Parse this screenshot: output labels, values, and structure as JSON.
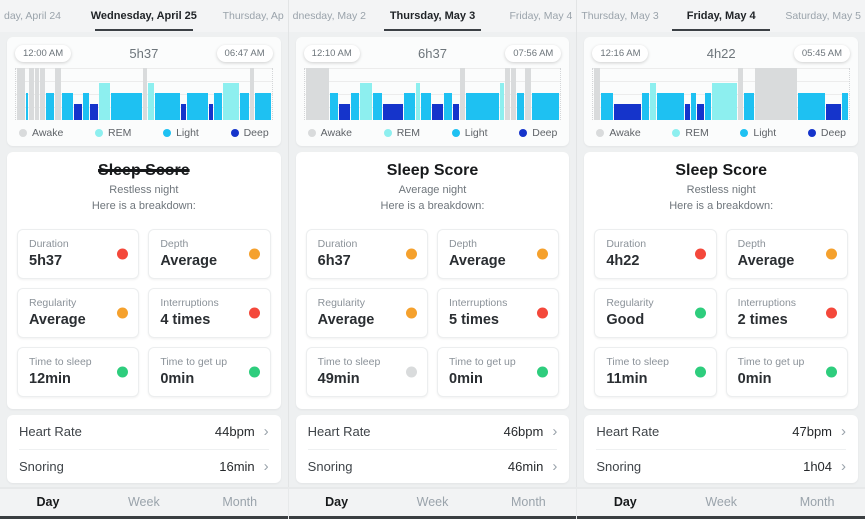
{
  "colors": {
    "stages": {
      "awake": "#d9dbdc",
      "rem": "#8defef",
      "light": "#1ec1f2",
      "deep": "#1534cb"
    },
    "status": {
      "red": "#f4483b",
      "orange": "#f5a12d",
      "green": "#2ecd7d",
      "gray": "#d9dbdc"
    }
  },
  "legend": [
    {
      "label": "Awake",
      "stage": "awake"
    },
    {
      "label": "REM",
      "stage": "rem"
    },
    {
      "label": "Light",
      "stage": "light"
    },
    {
      "label": "Deep",
      "stage": "deep"
    }
  ],
  "bottom_nav": {
    "items": [
      "Day",
      "Week",
      "Month"
    ],
    "active": "Day"
  },
  "panels": [
    {
      "tabs": {
        "prev": "day, April 24",
        "current": "Wednesday, April 25",
        "next": "Thursday, Ap"
      },
      "sleep_window": {
        "start": "12:00 AM",
        "duration": "5h37",
        "end": "06:47 AM"
      },
      "hypnogram": [
        [
          "awake",
          2
        ],
        [
          "light",
          0.6
        ],
        [
          "awake",
          1.2
        ],
        [
          "awake",
          1.2
        ],
        [
          "awake",
          1.2
        ],
        [
          "light",
          2
        ],
        [
          "awake",
          1.5
        ],
        [
          "light",
          3
        ],
        [
          "deep",
          2
        ],
        [
          "light",
          1.5
        ],
        [
          "deep",
          2
        ],
        [
          "rem",
          3
        ],
        [
          "light",
          8
        ],
        [
          "awake",
          1
        ],
        [
          "rem",
          1.5
        ],
        [
          "light",
          6.5
        ],
        [
          "deep",
          1.2
        ],
        [
          "light",
          5.5
        ],
        [
          "deep",
          1
        ],
        [
          "light",
          2
        ],
        [
          "rem",
          4
        ],
        [
          "light",
          2.5
        ],
        [
          "awake",
          1
        ],
        [
          "light",
          4
        ]
      ],
      "score": {
        "title": "Sleep Score",
        "night": "Restless night",
        "breakdown": "Here is a breakdown:"
      },
      "metrics": [
        {
          "label": "Duration",
          "value": "5h37",
          "status": "red"
        },
        {
          "label": "Depth",
          "value": "Average",
          "status": "orange"
        },
        {
          "label": "Regularity",
          "value": "Average",
          "status": "orange"
        },
        {
          "label": "Interruptions",
          "value": "4 times",
          "status": "red"
        },
        {
          "label": "Time to sleep",
          "value": "12min",
          "status": "green"
        },
        {
          "label": "Time to get up",
          "value": "0min",
          "status": "green"
        }
      ],
      "rows": [
        {
          "label": "Heart Rate",
          "value": "44bpm"
        },
        {
          "label": "Snoring",
          "value": "16min"
        }
      ]
    },
    {
      "tabs": {
        "prev": "dnesday, May 2",
        "current": "Thursday, May 3",
        "next": "Friday, May 4"
      },
      "sleep_window": {
        "start": "12:10 AM",
        "duration": "6h37",
        "end": "07:56 AM"
      },
      "hypnogram": [
        [
          "awake",
          6
        ],
        [
          "light",
          2
        ],
        [
          "deep",
          3
        ],
        [
          "light",
          2
        ],
        [
          "rem",
          3
        ],
        [
          "light",
          2.5
        ],
        [
          "deep",
          5
        ],
        [
          "light",
          3
        ],
        [
          "rem",
          1
        ],
        [
          "light",
          2.5
        ],
        [
          "deep",
          3
        ],
        [
          "light",
          2
        ],
        [
          "deep",
          1.5
        ],
        [
          "awake",
          1.3
        ],
        [
          "light",
          8.5
        ],
        [
          "rem",
          1.2
        ],
        [
          "awake",
          1.2
        ],
        [
          "awake",
          1.2
        ],
        [
          "light",
          2
        ],
        [
          "awake",
          1.5
        ],
        [
          "light",
          7
        ]
      ],
      "score": {
        "title": "Sleep Score",
        "night": "Average night",
        "breakdown": "Here is a breakdown:"
      },
      "metrics": [
        {
          "label": "Duration",
          "value": "6h37",
          "status": "orange"
        },
        {
          "label": "Depth",
          "value": "Average",
          "status": "orange"
        },
        {
          "label": "Regularity",
          "value": "Average",
          "status": "orange"
        },
        {
          "label": "Interruptions",
          "value": "5 times",
          "status": "red"
        },
        {
          "label": "Time to sleep",
          "value": "49min",
          "status": "gray"
        },
        {
          "label": "Time to get up",
          "value": "0min",
          "status": "green"
        }
      ],
      "rows": [
        {
          "label": "Heart Rate",
          "value": "46bpm"
        },
        {
          "label": "Snoring",
          "value": "46min"
        }
      ]
    },
    {
      "tabs": {
        "prev": "Thursday, May 3",
        "current": "Friday, May 4",
        "next": "Saturday, May 5"
      },
      "sleep_window": {
        "start": "12:16 AM",
        "duration": "4h22",
        "end": "05:45 AM"
      },
      "hypnogram": [
        [
          "awake",
          1.5
        ],
        [
          "light",
          3
        ],
        [
          "deep",
          7
        ],
        [
          "light",
          2
        ],
        [
          "rem",
          1.5
        ],
        [
          "light",
          7
        ],
        [
          "deep",
          1.3
        ],
        [
          "light",
          1.3
        ],
        [
          "deep",
          2
        ],
        [
          "light",
          1.5
        ],
        [
          "rem",
          6.5
        ],
        [
          "awake",
          1.3
        ],
        [
          "light",
          2.5
        ],
        [
          "awake",
          11
        ],
        [
          "light",
          7
        ],
        [
          "deep",
          4
        ],
        [
          "light",
          1.5
        ]
      ],
      "score": {
        "title": "Sleep Score",
        "night": "Restless night",
        "breakdown": "Here is a breakdown:"
      },
      "metrics": [
        {
          "label": "Duration",
          "value": "4h22",
          "status": "red"
        },
        {
          "label": "Depth",
          "value": "Average",
          "status": "orange"
        },
        {
          "label": "Regularity",
          "value": "Good",
          "status": "green"
        },
        {
          "label": "Interruptions",
          "value": "2 times",
          "status": "red"
        },
        {
          "label": "Time to sleep",
          "value": "11min",
          "status": "green"
        },
        {
          "label": "Time to get up",
          "value": "0min",
          "status": "green"
        }
      ],
      "rows": [
        {
          "label": "Heart Rate",
          "value": "47bpm"
        },
        {
          "label": "Snoring",
          "value": "1h04"
        }
      ]
    }
  ]
}
